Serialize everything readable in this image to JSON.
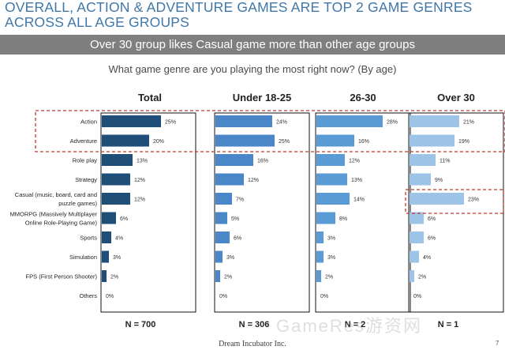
{
  "header": {
    "title_line1": "OVERALL, ACTION & ADVENTURE GAMES ARE TOP 2 GAME GENRES",
    "title_line2": "ACROSS ALL AGE GROUPS",
    "subtitle": "Over 30 group likes Casual game more than other age groups"
  },
  "footer": {
    "company": "Dream Incubator Inc.",
    "page_number": "7",
    "watermark": "GameRes游资网"
  },
  "colors": {
    "title": "#3f77a8",
    "subbar": "#7f7f7f",
    "highlight_border": "#c0392b",
    "panel_colors": [
      "#1f4e79",
      "#4a86c8",
      "#5b9bd5",
      "#9dc3e6"
    ]
  },
  "chart_data": {
    "type": "bar",
    "orientation": "horizontal",
    "title": "What game genre are you playing the most right now? (By age)",
    "categories": [
      [
        "Action"
      ],
      [
        "Adventure"
      ],
      [
        "Role play"
      ],
      [
        "Strategy"
      ],
      [
        "Casual (music, board, card and",
        "puzzle games)"
      ],
      [
        "MMORPG (Massively Multiplayer",
        "Online Role-Playing Game)"
      ],
      [
        "Sports"
      ],
      [
        "Simulation"
      ],
      [
        "FPS (First Person Shooter)"
      ],
      [
        "Others"
      ]
    ],
    "xlim": [
      0,
      40
    ],
    "series": [
      {
        "name": "Total",
        "n_label": "N = 700",
        "values": [
          25,
          20,
          13,
          12,
          12,
          6,
          4,
          3,
          2,
          0
        ]
      },
      {
        "name": "Under 18-25",
        "n_label": "N = 306",
        "values": [
          24,
          25,
          16,
          12,
          7,
          5,
          6,
          3,
          2,
          0
        ]
      },
      {
        "name": "26-30",
        "n_label": "N = 2",
        "values": [
          28,
          16,
          12,
          13,
          14,
          8,
          3,
          3,
          2,
          0
        ]
      },
      {
        "name": "Over 30",
        "n_label": "N = 1",
        "values": [
          21,
          19,
          11,
          9,
          23,
          6,
          6,
          4,
          2,
          0
        ]
      }
    ],
    "highlights": [
      {
        "note": "Action and Adventure rows across all panels",
        "rows": [
          0,
          1
        ]
      },
      {
        "note": "Casual row in Over 30 panel",
        "series": 3,
        "rows": [
          4
        ]
      }
    ]
  }
}
